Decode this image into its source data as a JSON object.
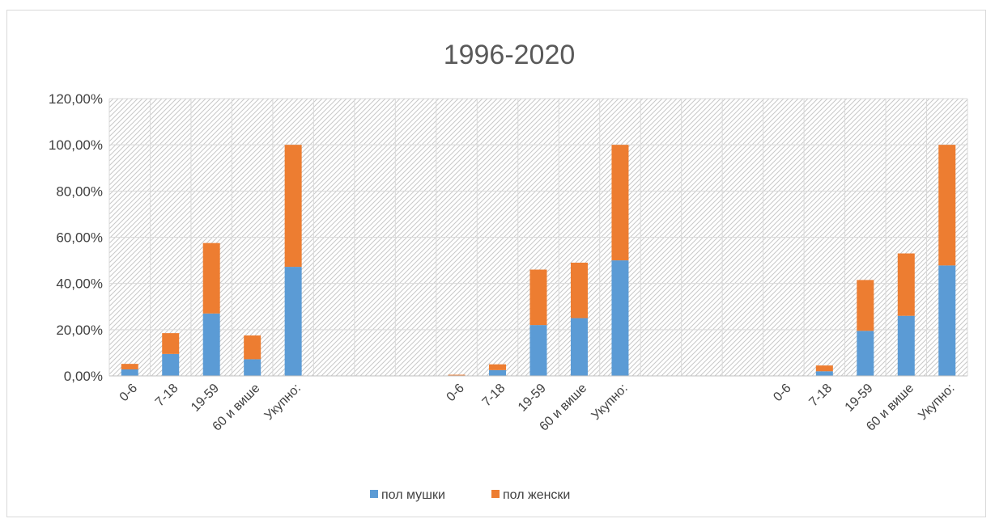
{
  "chart_data": {
    "type": "bar",
    "stacked": true,
    "title": "1996-2020",
    "xlabel": "",
    "ylabel": "",
    "ylim": [
      0,
      1.2
    ],
    "y_ticks": [
      "0,00%",
      "20,00%",
      "40,00%",
      "60,00%",
      "80,00%",
      "100,00%",
      "120,00%"
    ],
    "grid": true,
    "plot_pattern": "diagonal-hatch",
    "legend_position": "bottom",
    "categories": [
      "0-6",
      "7-18",
      "19-59",
      "60 и више",
      "Укупно:",
      "",
      "",
      "",
      "0-6",
      "7-18",
      "19-59",
      "60 и више",
      "Укупно:",
      "",
      "",
      "",
      "0-6",
      "7-18",
      "19-59",
      "60 и више",
      "Укупно:"
    ],
    "series": [
      {
        "name": "пол мушки",
        "color": "#5b9bd5",
        "values": [
          0.028,
          0.095,
          0.27,
          0.072,
          0.472,
          0,
          0,
          0,
          0.002,
          0.025,
          0.22,
          0.25,
          0.5,
          0,
          0,
          0,
          0,
          0.02,
          0.195,
          0.26,
          0.478
        ]
      },
      {
        "name": "пол женски",
        "color": "#ed7d31",
        "values": [
          0.024,
          0.09,
          0.305,
          0.103,
          0.528,
          0,
          0,
          0,
          0.003,
          0.025,
          0.24,
          0.24,
          0.5,
          0,
          0,
          0,
          0,
          0.025,
          0.22,
          0.27,
          0.522
        ]
      }
    ]
  }
}
